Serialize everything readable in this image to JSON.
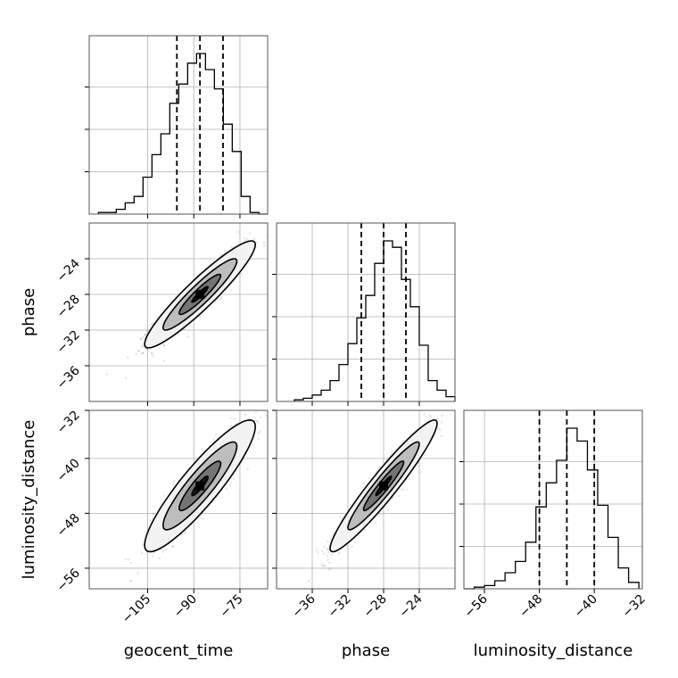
{
  "chart_data": {
    "type": "corner",
    "parameters": [
      "geocent_time",
      "phase",
      "luminosity_distance"
    ],
    "ranges": {
      "geocent_time": [
        -124,
        -66
      ],
      "phase": [
        -40,
        -20
      ],
      "luminosity_distance": [
        -59,
        -33
      ]
    },
    "ticks": {
      "geocent_time": [
        -105,
        -90,
        -75
      ],
      "phase": [
        -36,
        -32,
        -28,
        -24
      ],
      "luminosity_distance": [
        -56,
        -48,
        -40,
        -32
      ]
    },
    "tick_labels": {
      "geocent_time": [
        "−105",
        "−90",
        "−75"
      ],
      "phase": [
        "−36",
        "−32",
        "−28",
        "−24"
      ],
      "luminosity_distance": [
        "−56",
        "−48",
        "−40",
        "−32"
      ]
    },
    "quantiles": {
      "geocent_time": [
        -95.5,
        -88.0,
        -80.5
      ],
      "phase": [
        -30.5,
        -28.0,
        -25.5
      ],
      "luminosity_distance": [
        -48.0,
        -44.0,
        -40.0
      ]
    },
    "histograms": {
      "geocent_time": {
        "bin_edges": [
          -121.0,
          -118.1,
          -115.2,
          -112.3,
          -109.4,
          -106.5,
          -103.6,
          -100.7,
          -97.8,
          -94.9,
          -92.0,
          -89.1,
          -86.2,
          -83.3,
          -80.4,
          -77.5,
          -74.6,
          -71.7,
          -68.8,
          -66.0
        ],
        "counts": [
          0.01,
          0.01,
          0.03,
          0.07,
          0.11,
          0.23,
          0.37,
          0.5,
          0.69,
          0.81,
          0.94,
          1.0,
          0.9,
          0.78,
          0.56,
          0.39,
          0.11,
          0.01,
          0.0
        ]
      },
      "phase": {
        "bin_edges": [
          -38.0,
          -37.0,
          -36.0,
          -35.0,
          -34.0,
          -33.0,
          -32.0,
          -31.0,
          -30.0,
          -29.0,
          -28.0,
          -27.0,
          -26.0,
          -25.0,
          -24.0,
          -23.0,
          -22.0,
          -21.0,
          -20.0
        ],
        "counts": [
          0.01,
          0.02,
          0.04,
          0.07,
          0.13,
          0.23,
          0.36,
          0.52,
          0.66,
          0.86,
          1.0,
          0.96,
          0.76,
          0.59,
          0.35,
          0.13,
          0.07,
          0.03
        ]
      },
      "luminosity_distance": {
        "bin_edges": [
          -59.0,
          -57.5,
          -56.0,
          -54.5,
          -53.0,
          -51.5,
          -50.0,
          -48.5,
          -47.0,
          -45.5,
          -44.0,
          -42.5,
          -41.0,
          -39.5,
          -38.0,
          -36.5,
          -35.0,
          -33.5
        ],
        "counts": [
          0.0,
          0.01,
          0.02,
          0.05,
          0.1,
          0.17,
          0.29,
          0.51,
          0.66,
          0.8,
          1.0,
          0.92,
          0.74,
          0.52,
          0.32,
          0.13,
          0.04
        ]
      }
    },
    "joint_distributions": [
      {
        "x": "geocent_time",
        "y": "phase",
        "mean": [
          -88.0,
          -28.0
        ],
        "std": [
          7.5,
          2.5
        ],
        "correlation": 0.93
      },
      {
        "x": "geocent_time",
        "y": "luminosity_distance",
        "mean": [
          -88.0,
          -44.0
        ],
        "std": [
          7.5,
          4.0
        ],
        "correlation": 0.9
      },
      {
        "x": "phase",
        "y": "luminosity_distance",
        "mean": [
          -28.0,
          -44.0
        ],
        "std": [
          2.5,
          4.0
        ],
        "correlation": 0.95
      }
    ],
    "grid": true
  }
}
